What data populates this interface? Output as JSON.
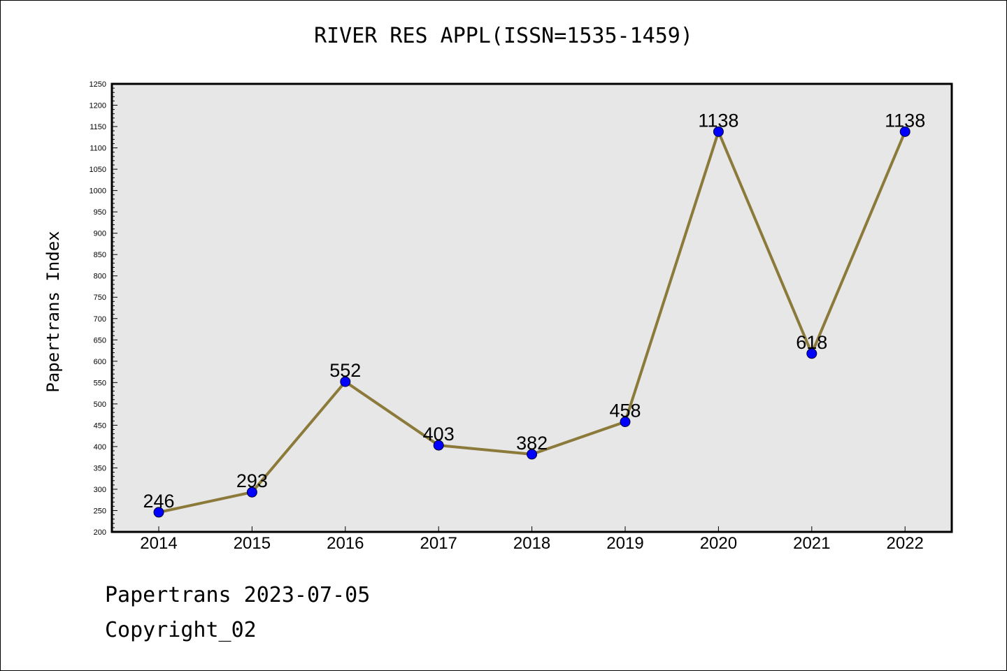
{
  "colors": {
    "plot_background": "#e7e7e7",
    "line": "#8b7a3a",
    "marker": "#0000ff",
    "axis": "#000000"
  },
  "chart_data": {
    "type": "line",
    "title": "RIVER RES APPL(ISSN=1535-1459)",
    "xlabel": "",
    "ylabel": "Papertrans Index",
    "categories": [
      "2014",
      "2015",
      "2016",
      "2017",
      "2018",
      "2019",
      "2020",
      "2021",
      "2022"
    ],
    "values": [
      246,
      293,
      552,
      403,
      382,
      458,
      1138,
      618,
      1138
    ],
    "data_labels": [
      "246",
      "293",
      "552",
      "403",
      "382",
      "458",
      "1138",
      "618",
      "1138"
    ],
    "ylim": [
      200,
      1250
    ],
    "yticks": [
      200,
      250,
      300,
      350,
      400,
      450,
      500,
      550,
      600,
      650,
      700,
      750,
      800,
      850,
      900,
      950,
      1000,
      1050,
      1100,
      1150,
      1200,
      1250
    ],
    "grid": false,
    "legend": "none"
  },
  "footer": {
    "line1": "Papertrans 2023-07-05",
    "line2": "Copyright_02"
  }
}
